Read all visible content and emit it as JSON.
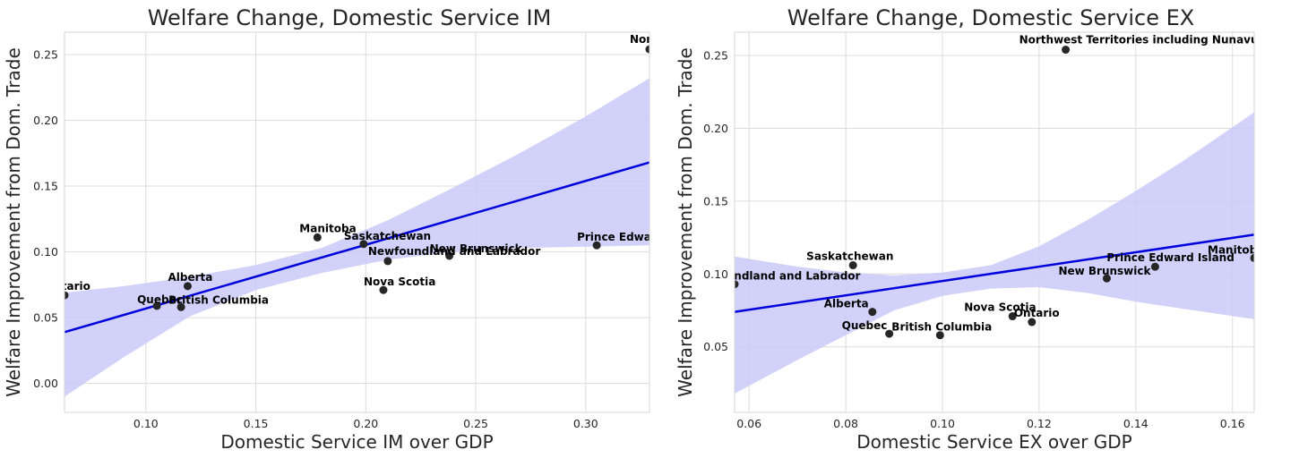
{
  "chart_data": [
    {
      "type": "scatter",
      "title": "Welfare Change, Domestic Service IM",
      "xlabel": "Domestic Service IM over GDP",
      "ylabel": "Welfare Improvement from Dom. Trade",
      "xlim": [
        0.063,
        0.329
      ],
      "ylim": [
        -0.022,
        0.267
      ],
      "xticks": [
        0.1,
        0.15,
        0.2,
        0.25,
        0.3
      ],
      "yticks": [
        0.0,
        0.05,
        0.1,
        0.15,
        0.2,
        0.25
      ],
      "xtick_labels": [
        "0.10",
        "0.15",
        "0.20",
        "0.25",
        "0.30"
      ],
      "ytick_labels": [
        "0.00",
        "0.05",
        "0.10",
        "0.15",
        "0.20",
        "0.25"
      ],
      "grid": true,
      "colors": {
        "points": "#262626",
        "regression_line": "#0000dd",
        "confidence_band": "#c9c9f9"
      },
      "points": [
        {
          "label": "Ontario",
          "x": 0.063,
          "y": 0.067
        },
        {
          "label": "Quebec",
          "x": 0.105,
          "y": 0.059
        },
        {
          "label": "British Columbia",
          "x": 0.116,
          "y": 0.058
        },
        {
          "label": "Alberta",
          "x": 0.119,
          "y": 0.074
        },
        {
          "label": "Manitoba",
          "x": 0.178,
          "y": 0.111
        },
        {
          "label": "Saskatchewan",
          "x": 0.199,
          "y": 0.106
        },
        {
          "label": "Nova Scotia",
          "x": 0.208,
          "y": 0.071
        },
        {
          "label": "Newfoundland and Labrador",
          "x": 0.21,
          "y": 0.093
        },
        {
          "label": "New Brunswick",
          "x": 0.238,
          "y": 0.097
        },
        {
          "label": "Prince Edward Island",
          "x": 0.305,
          "y": 0.105
        },
        {
          "label": "Northwest Territories including Nunavut",
          "x": 0.329,
          "y": 0.254
        }
      ],
      "regression": {
        "x": [
          0.063,
          0.329
        ],
        "y": [
          0.039,
          0.168
        ]
      },
      "confidence_band": {
        "x": [
          0.063,
          0.09,
          0.12,
          0.15,
          0.18,
          0.21,
          0.24,
          0.27,
          0.3,
          0.329
        ],
        "upper": [
          0.069,
          0.074,
          0.081,
          0.09,
          0.103,
          0.124,
          0.149,
          0.175,
          0.203,
          0.232
        ],
        "lower": [
          -0.01,
          0.02,
          0.051,
          0.071,
          0.084,
          0.094,
          0.1,
          0.103,
          0.104,
          0.105
        ]
      }
    },
    {
      "type": "scatter",
      "title": "Welfare Change, Domestic Service EX",
      "xlabel": "Domestic Service EX over GDP",
      "ylabel": "Welfare Improvement from Dom. Trade",
      "xlim": [
        0.057,
        0.1645
      ],
      "ylim": [
        0.005,
        0.266
      ],
      "xticks": [
        0.06,
        0.08,
        0.1,
        0.12,
        0.14,
        0.16
      ],
      "yticks": [
        0.05,
        0.1,
        0.15,
        0.2,
        0.25
      ],
      "xtick_labels": [
        "0.06",
        "0.08",
        "0.10",
        "0.12",
        "0.14",
        "0.16"
      ],
      "ytick_labels": [
        "0.05",
        "0.10",
        "0.15",
        "0.20",
        "0.25"
      ],
      "grid": true,
      "colors": {
        "points": "#262626",
        "regression_line": "#0000dd",
        "confidence_band": "#c9c9f9"
      },
      "points": [
        {
          "label": "Newfoundland and Labrador",
          "x": 0.057,
          "y": 0.093
        },
        {
          "label": "Saskatchewan",
          "x": 0.0815,
          "y": 0.106
        },
        {
          "label": "Alberta",
          "x": 0.0855,
          "y": 0.074
        },
        {
          "label": "Quebec",
          "x": 0.089,
          "y": 0.059
        },
        {
          "label": "British Columbia",
          "x": 0.0995,
          "y": 0.058
        },
        {
          "label": "Nova Scotia",
          "x": 0.1145,
          "y": 0.071
        },
        {
          "label": "Ontario",
          "x": 0.1185,
          "y": 0.067
        },
        {
          "label": "Northwest Territories including Nunavut",
          "x": 0.1255,
          "y": 0.254
        },
        {
          "label": "New Brunswick",
          "x": 0.134,
          "y": 0.097
        },
        {
          "label": "Prince Edward Island",
          "x": 0.144,
          "y": 0.105
        },
        {
          "label": "Manitoba",
          "x": 0.1645,
          "y": 0.111
        }
      ],
      "regression": {
        "x": [
          0.057,
          0.1645
        ],
        "y": [
          0.074,
          0.127
        ]
      },
      "confidence_band": {
        "x": [
          0.057,
          0.07,
          0.08,
          0.09,
          0.1,
          0.11,
          0.12,
          0.13,
          0.14,
          0.15,
          0.1645
        ],
        "upper": [
          0.112,
          0.105,
          0.101,
          0.099,
          0.101,
          0.106,
          0.119,
          0.137,
          0.157,
          0.178,
          0.211
        ],
        "lower": [
          0.018,
          0.041,
          0.058,
          0.075,
          0.085,
          0.09,
          0.091,
          0.087,
          0.081,
          0.076,
          0.069
        ]
      }
    }
  ]
}
